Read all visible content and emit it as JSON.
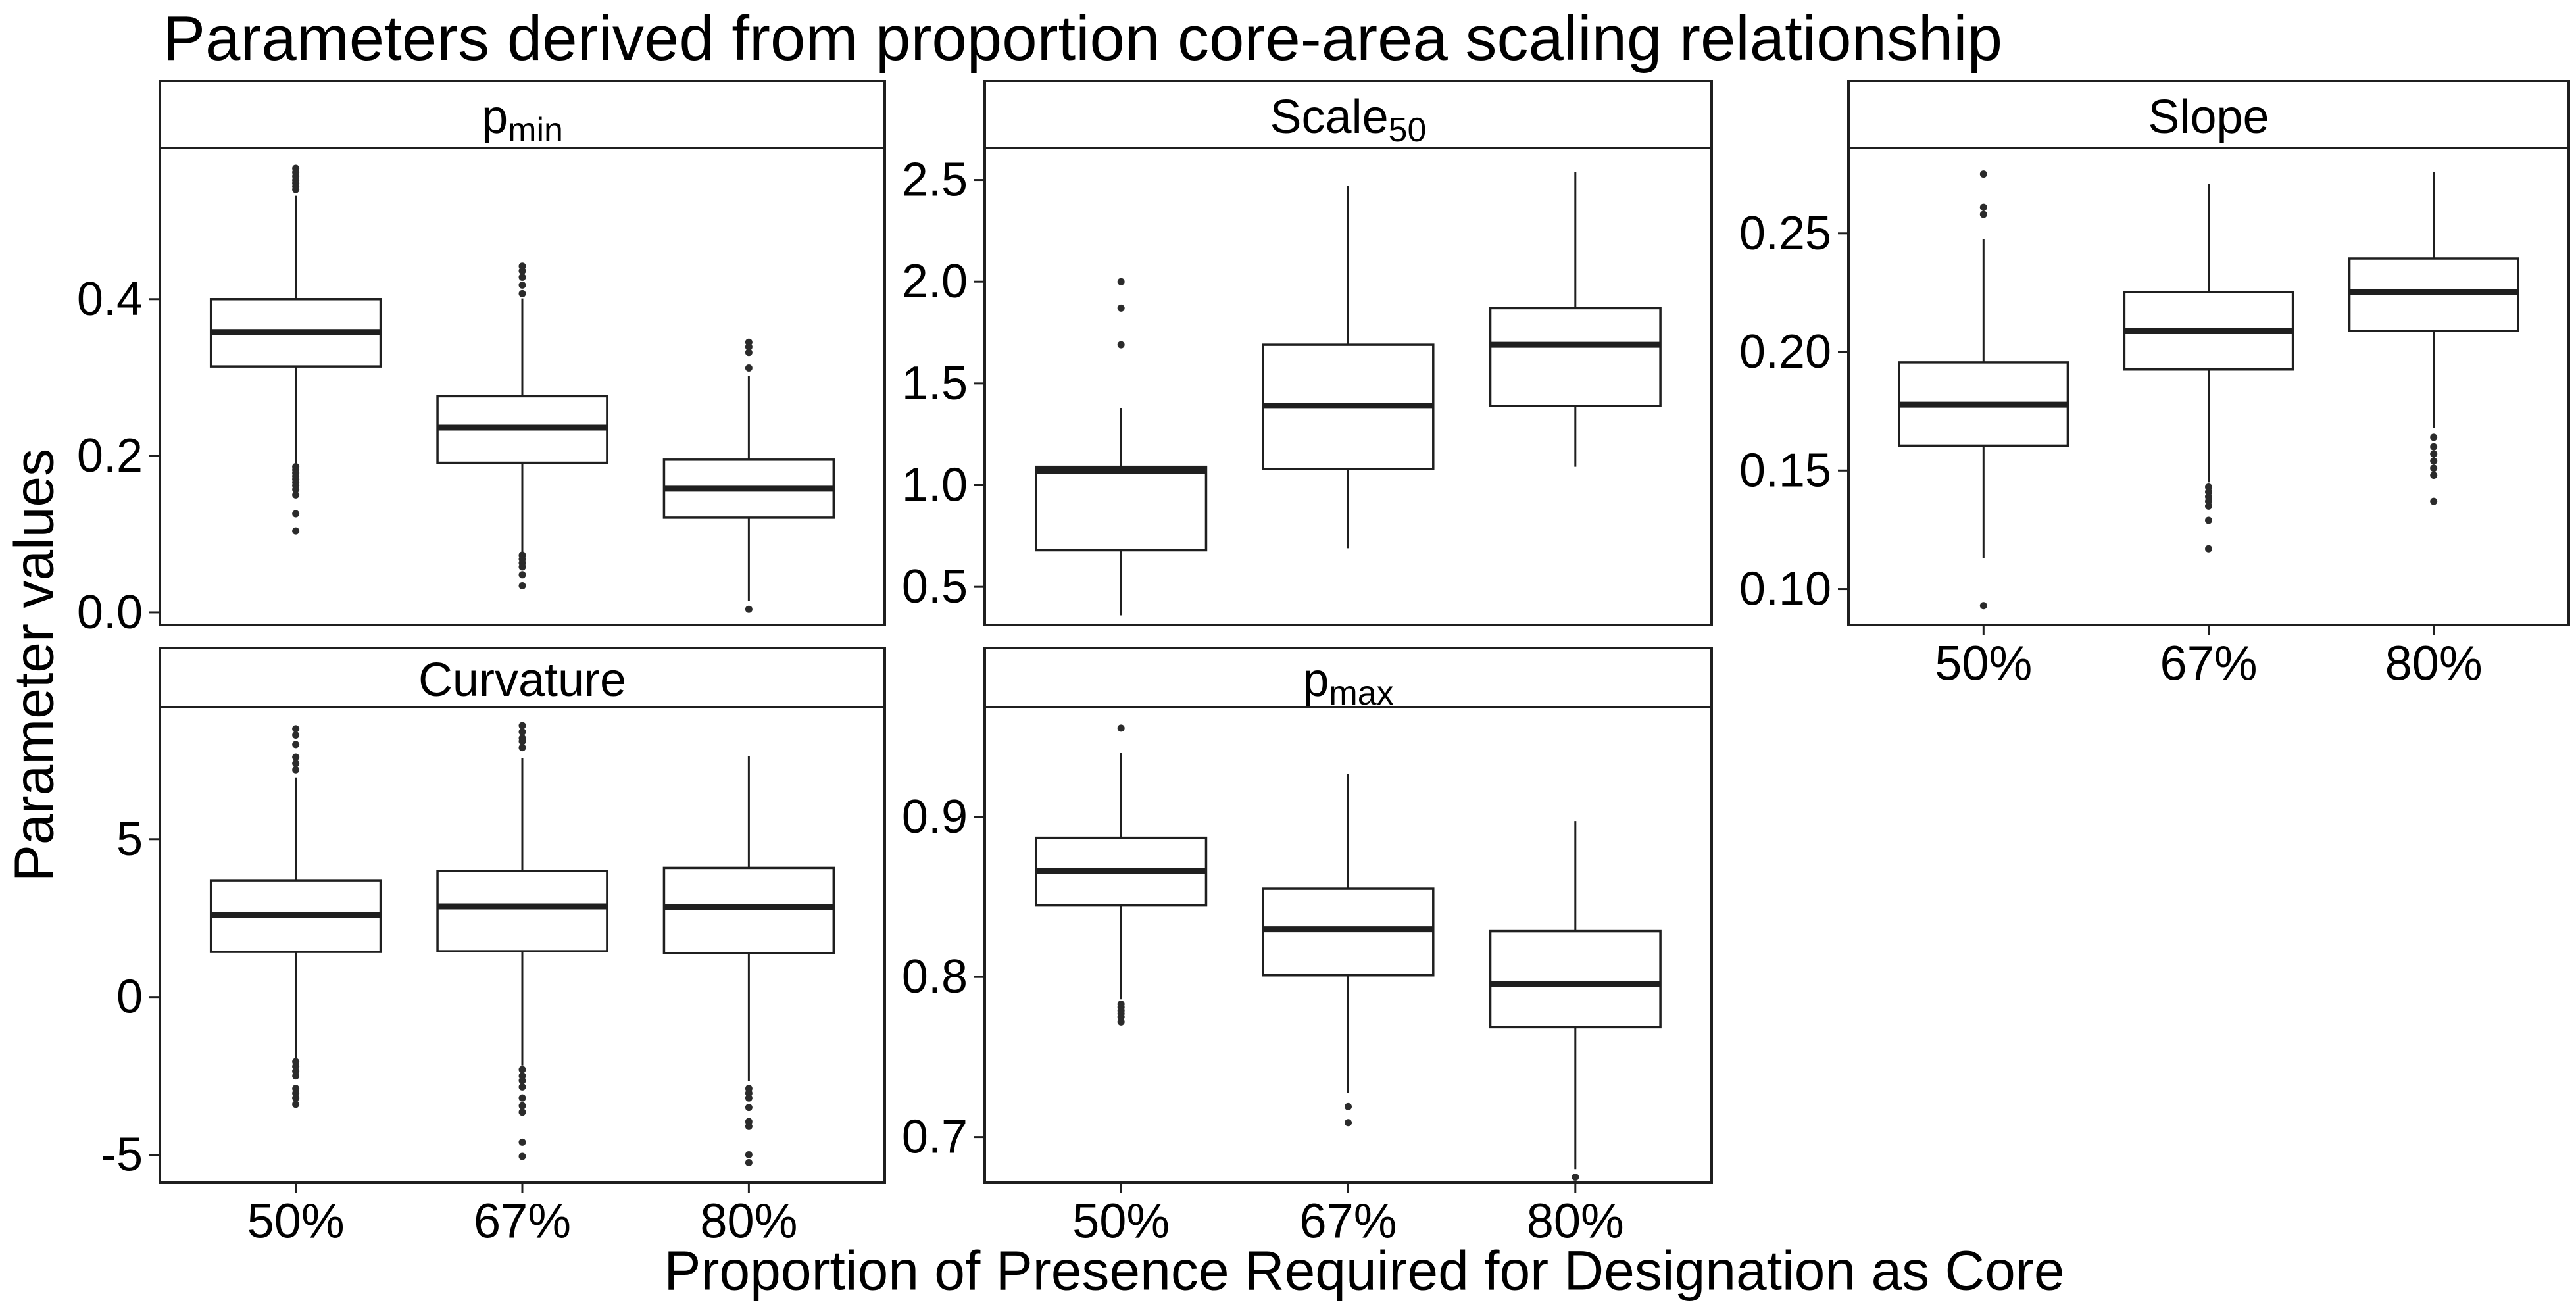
{
  "colors": {
    "background": "#ffffff",
    "stroke": "#1f1f1f",
    "text": "#000000",
    "outlier": "#2b2b2b",
    "panel_fill": "#ffffff"
  },
  "chart_data": {
    "type": "boxplot",
    "title": "Parameters derived from proportion core-area scaling relationship",
    "xlabel": "Proportion of Presence Required for Designation as Core",
    "ylabel": "Parameter values",
    "categories": [
      "50%",
      "67%",
      "80%"
    ],
    "legend": "none",
    "grid": "off",
    "facets": [
      {
        "id": "pmin",
        "row": 0,
        "col": 0,
        "title_parts": [
          {
            "text": "p"
          },
          {
            "text": "min",
            "sub": true
          }
        ],
        "ylim": [
          -0.016,
          0.593
        ],
        "yticks": [
          {
            "v": 0.0,
            "label": "0.0"
          },
          {
            "v": 0.2,
            "label": "0.2"
          },
          {
            "v": 0.4,
            "label": "0.4"
          }
        ],
        "boxes": [
          {
            "category": "50%",
            "whislo": 0.188,
            "q1": 0.314,
            "med": 0.358,
            "q3": 0.4,
            "whishi": 0.532,
            "outliers_high": [
              0.54,
              0.544,
              0.548,
              0.552,
              0.557,
              0.562,
              0.567
            ],
            "outliers_low": [
              0.186,
              0.182,
              0.178,
              0.174,
              0.17,
              0.166,
              0.162,
              0.157,
              0.15,
              0.126,
              0.104
            ]
          },
          {
            "category": "67%",
            "whislo": 0.077,
            "q1": 0.191,
            "med": 0.236,
            "q3": 0.276,
            "whishi": 0.401,
            "outliers_high": [
              0.407,
              0.418,
              0.428,
              0.436,
              0.442
            ],
            "outliers_low": [
              0.073,
              0.068,
              0.063,
              0.058,
              0.048,
              0.034
            ]
          },
          {
            "category": "80%",
            "whislo": 0.015,
            "q1": 0.121,
            "med": 0.158,
            "q3": 0.195,
            "whishi": 0.302,
            "outliers_high": [
              0.345,
              0.339,
              0.332,
              0.312
            ],
            "outliers_low": [
              0.004
            ]
          }
        ]
      },
      {
        "id": "scale50",
        "row": 0,
        "col": 1,
        "title_parts": [
          {
            "text": "Scale"
          },
          {
            "text": "50",
            "sub": true
          }
        ],
        "ylim": [
          0.313,
          2.657
        ],
        "yticks": [
          {
            "v": 0.5,
            "label": "0.5"
          },
          {
            "v": 1.0,
            "label": "1.0"
          },
          {
            "v": 1.5,
            "label": "1.5"
          },
          {
            "v": 2.0,
            "label": "2.0"
          },
          {
            "v": 2.5,
            "label": "2.5"
          }
        ],
        "boxes": [
          {
            "category": "50%",
            "whislo": 0.36,
            "q1": 0.68,
            "med": 1.07,
            "q3": 1.09,
            "whishi": 1.38,
            "outliers_high": [
              1.69,
              1.87,
              2.0
            ],
            "outliers_low": []
          },
          {
            "category": "67%",
            "whislo": 0.69,
            "q1": 1.08,
            "med": 1.39,
            "q3": 1.69,
            "whishi": 2.47,
            "outliers_high": [],
            "outliers_low": []
          },
          {
            "category": "80%",
            "whislo": 1.09,
            "q1": 1.39,
            "med": 1.69,
            "q3": 1.87,
            "whishi": 2.54,
            "outliers_high": [],
            "outliers_low": []
          }
        ]
      },
      {
        "id": "slope",
        "row": 0,
        "col": 2,
        "title_parts": [
          {
            "text": "Slope"
          }
        ],
        "ylim": [
          0.0849,
          0.286
        ],
        "yticks": [
          {
            "v": 0.1,
            "label": "0.10"
          },
          {
            "v": 0.15,
            "label": "0.15"
          },
          {
            "v": 0.2,
            "label": "0.20"
          },
          {
            "v": 0.25,
            "label": "0.25"
          }
        ],
        "boxes": [
          {
            "category": "50%",
            "whislo": 0.113,
            "q1": 0.1605,
            "med": 0.1778,
            "q3": 0.1956,
            "whishi": 0.2476,
            "outliers_high": [
              0.275,
              0.261,
              0.258
            ],
            "outliers_low": [
              0.093
            ]
          },
          {
            "category": "67%",
            "whislo": 0.145,
            "q1": 0.1926,
            "med": 0.2089,
            "q3": 0.2253,
            "whishi": 0.271,
            "outliers_high": [],
            "outliers_low": [
              0.143,
              0.141,
              0.139,
              0.137,
              0.135,
              0.129,
              0.117
            ]
          },
          {
            "category": "80%",
            "whislo": 0.168,
            "q1": 0.2089,
            "med": 0.2251,
            "q3": 0.2394,
            "whishi": 0.276,
            "outliers_high": [],
            "outliers_low": [
              0.164,
              0.16,
              0.157,
              0.154,
              0.151,
              0.148,
              0.137
            ]
          }
        ]
      },
      {
        "id": "curvature",
        "row": 1,
        "col": 0,
        "title_parts": [
          {
            "text": "Curvature"
          }
        ],
        "ylim": [
          -5.885,
          9.185
        ],
        "yticks": [
          {
            "v": -5,
            "label": "-5"
          },
          {
            "v": 0,
            "label": "0"
          },
          {
            "v": 5,
            "label": "5"
          }
        ],
        "boxes": [
          {
            "category": "50%",
            "whislo": -1.93,
            "q1": 1.43,
            "med": 2.6,
            "q3": 3.68,
            "whishi": 6.96,
            "outliers_high": [
              8.5,
              8.3,
              8.0,
              7.6,
              7.4,
              7.2
            ],
            "outliers_low": [
              -2.05,
              -2.2,
              -2.35,
              -2.5,
              -2.9,
              -3.05,
              -3.2,
              -3.4
            ]
          },
          {
            "category": "67%",
            "whislo": -2.17,
            "q1": 1.45,
            "med": 2.87,
            "q3": 3.99,
            "whishi": 7.58,
            "outliers_high": [
              8.6,
              8.4,
              8.2,
              8.1,
              7.9
            ],
            "outliers_low": [
              -2.3,
              -2.5,
              -2.65,
              -2.85,
              -3.2,
              -3.45,
              -3.65,
              -4.6,
              -5.05
            ]
          },
          {
            "category": "80%",
            "whislo": -2.66,
            "q1": 1.39,
            "med": 2.85,
            "q3": 4.09,
            "whishi": 7.63,
            "outliers_high": [],
            "outliers_low": [
              -2.9,
              -3.05,
              -3.2,
              -3.5,
              -3.95,
              -4.1,
              -5.0,
              -5.25
            ]
          }
        ]
      },
      {
        "id": "pmax",
        "row": 1,
        "col": 1,
        "title_parts": [
          {
            "text": "p"
          },
          {
            "text": "max",
            "sub": true
          }
        ],
        "ylim": [
          0.6715,
          0.9685
        ],
        "yticks": [
          {
            "v": 0.7,
            "label": "0.7"
          },
          {
            "v": 0.8,
            "label": "0.8"
          },
          {
            "v": 0.9,
            "label": "0.9"
          }
        ],
        "boxes": [
          {
            "category": "50%",
            "whislo": 0.786,
            "q1": 0.8446,
            "med": 0.8661,
            "q3": 0.8869,
            "whishi": 0.9401,
            "outliers_high": [
              0.9554
            ],
            "outliers_low": [
              0.783,
              0.781,
              0.779,
              0.777,
              0.775,
              0.772
            ]
          },
          {
            "category": "67%",
            "whislo": 0.7274,
            "q1": 0.801,
            "med": 0.8298,
            "q3": 0.8551,
            "whishi": 0.9266,
            "outliers_high": [],
            "outliers_low": [
              0.719,
              0.709
            ]
          },
          {
            "category": "80%",
            "whislo": 0.68,
            "q1": 0.7687,
            "med": 0.7956,
            "q3": 0.8286,
            "whishi": 0.8974,
            "outliers_high": [],
            "outliers_low": [
              0.675
            ]
          }
        ]
      }
    ]
  }
}
